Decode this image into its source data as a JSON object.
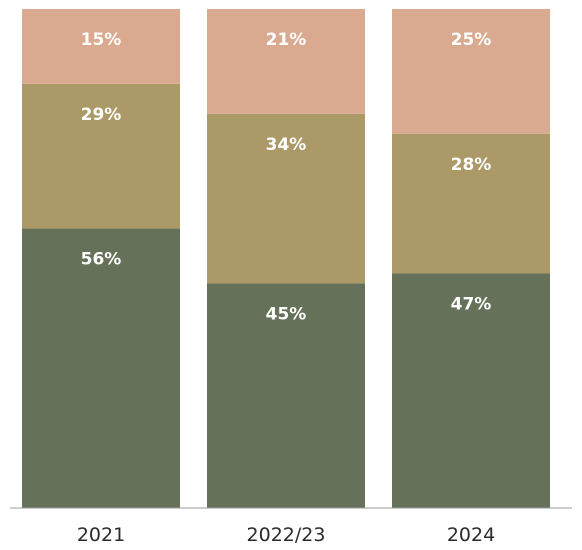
{
  "chart_data": {
    "type": "bar",
    "stacked": true,
    "title": "",
    "xlabel": "",
    "ylabel": "",
    "categories": [
      "2021",
      "2022/23",
      "2024"
    ],
    "series": [
      {
        "values": [
          56,
          45,
          47
        ],
        "labels": [
          "56%",
          "45%",
          "47%"
        ],
        "color": "#66715a"
      },
      {
        "values": [
          29,
          34,
          28
        ],
        "labels": [
          "29%",
          "34%",
          "28%"
        ],
        "color": "#ab9a68"
      },
      {
        "values": [
          15,
          21,
          25
        ],
        "labels": [
          "15%",
          "21%",
          "25%"
        ],
        "color": "#d9aa90"
      }
    ],
    "ylim": [
      0,
      100
    ],
    "grid": false,
    "legend": "none"
  }
}
